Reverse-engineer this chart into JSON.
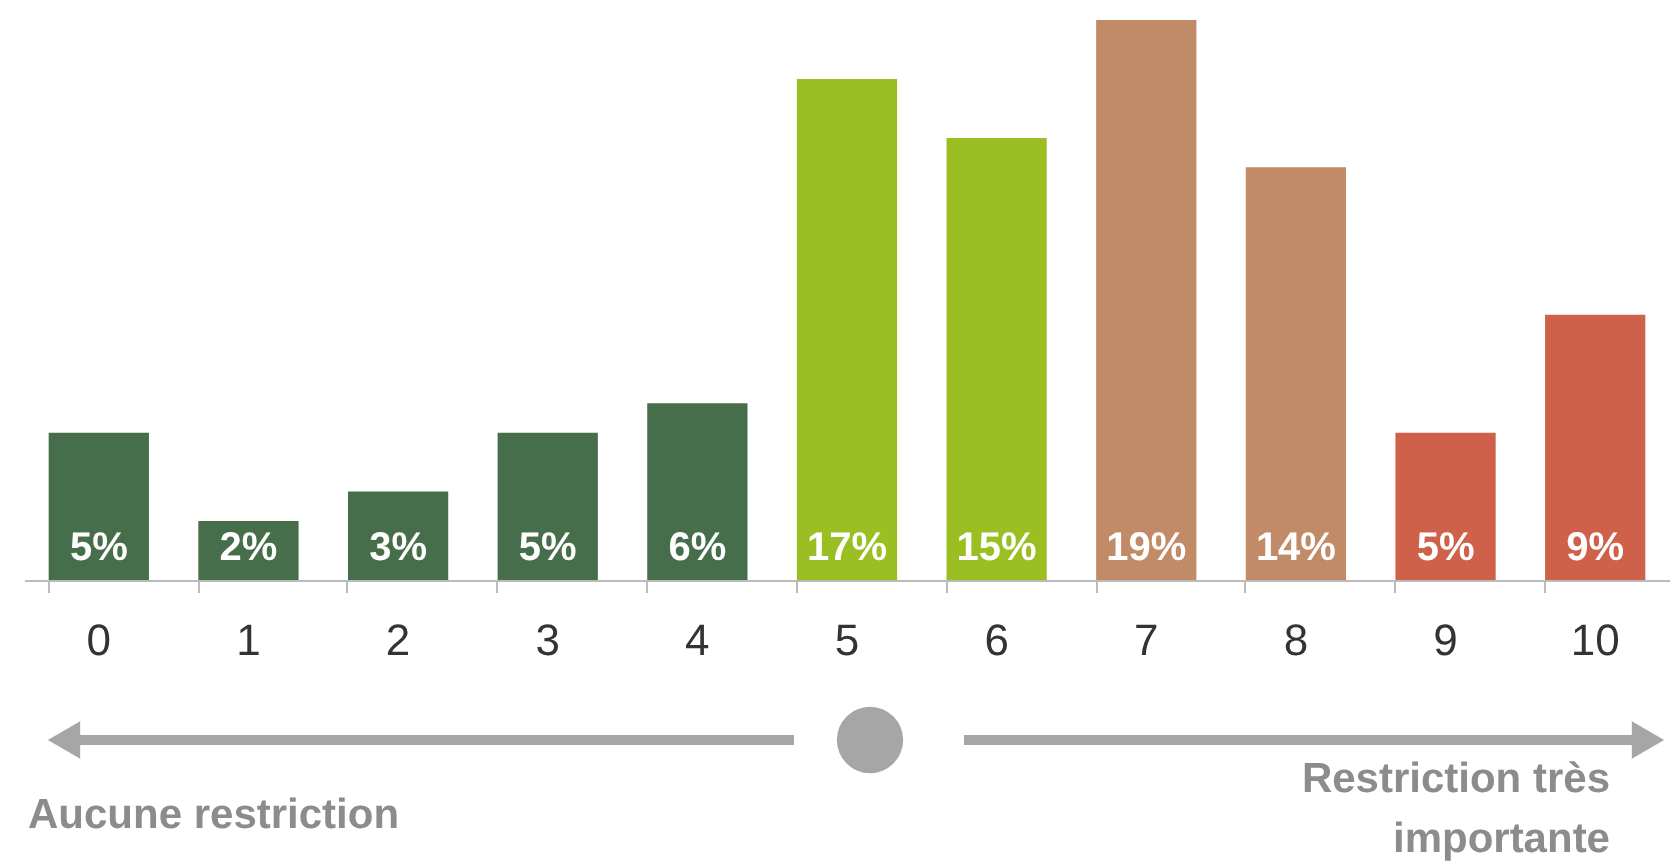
{
  "chart_data": {
    "type": "bar",
    "categories": [
      "0",
      "1",
      "2",
      "3",
      "4",
      "5",
      "6",
      "7",
      "8",
      "9",
      "10"
    ],
    "values": [
      5,
      2,
      3,
      5,
      6,
      17,
      15,
      19,
      14,
      5,
      9
    ],
    "colors": [
      "#476e4a",
      "#476e4a",
      "#476e4a",
      "#476e4a",
      "#476e4a",
      "#9bbf22",
      "#9bbf22",
      "#c08b66",
      "#c08b66",
      "#cf614a",
      "#cf614a"
    ],
    "data_labels": true,
    "value_labels": [
      "5%",
      "2%",
      "3%",
      "5%",
      "6%",
      "17%",
      "15%",
      "19%",
      "14%",
      "5%",
      "9%"
    ],
    "tick_labels": "x",
    "grid": false,
    "annotations": [
      "Aucune restriction",
      "Restriction très\nimportante"
    ]
  }
}
